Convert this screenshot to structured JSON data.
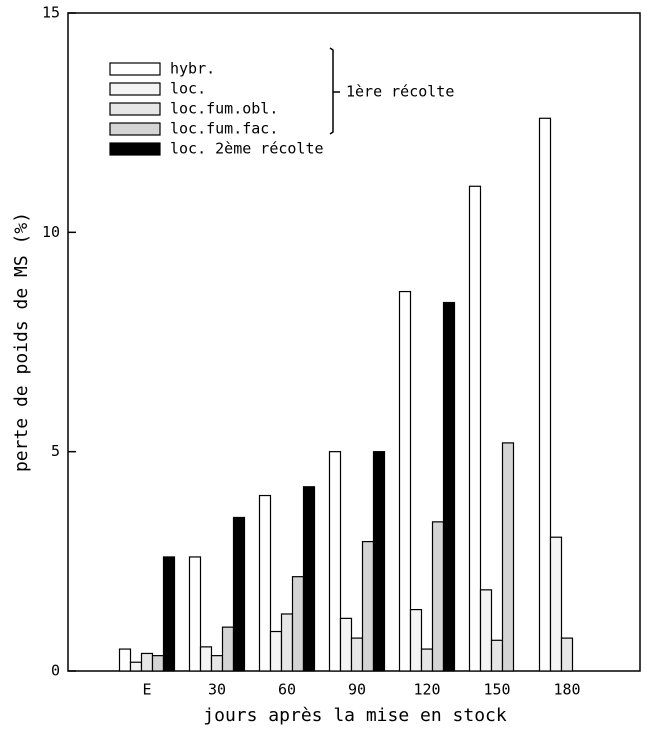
{
  "chart_data": {
    "type": "bar",
    "ylabel": "perte de poids de MS (%)",
    "xlabel": "jours après la mise en stock",
    "brace_label": "1ère récolte",
    "categories": [
      "E",
      "30",
      "60",
      "90",
      "120",
      "150",
      "180"
    ],
    "series": [
      {
        "name": "hybr.",
        "color": "#ffffff",
        "values": [
          0.5,
          2.6,
          4.0,
          5.0,
          8.65,
          11.05,
          12.6
        ]
      },
      {
        "name": "loc.",
        "color": "#f4f4f4",
        "values": [
          0.2,
          0.55,
          0.9,
          1.2,
          1.4,
          1.85,
          3.05
        ]
      },
      {
        "name": "loc.fum.obl.",
        "color": "#e6e6e6",
        "values": [
          0.4,
          0.35,
          1.3,
          0.75,
          0.5,
          0.7,
          0.75
        ]
      },
      {
        "name": "loc.fum.fac.",
        "color": "#d4d4d4",
        "values": [
          0.35,
          1.0,
          2.15,
          2.95,
          3.4,
          5.2,
          null
        ]
      },
      {
        "name": "loc. 2ème récolte",
        "color": "#000000",
        "values": [
          2.6,
          3.5,
          4.2,
          5.0,
          8.4,
          null,
          null
        ]
      }
    ],
    "ylim": [
      0,
      15
    ],
    "yticks": [
      0,
      5,
      10,
      15
    ]
  }
}
